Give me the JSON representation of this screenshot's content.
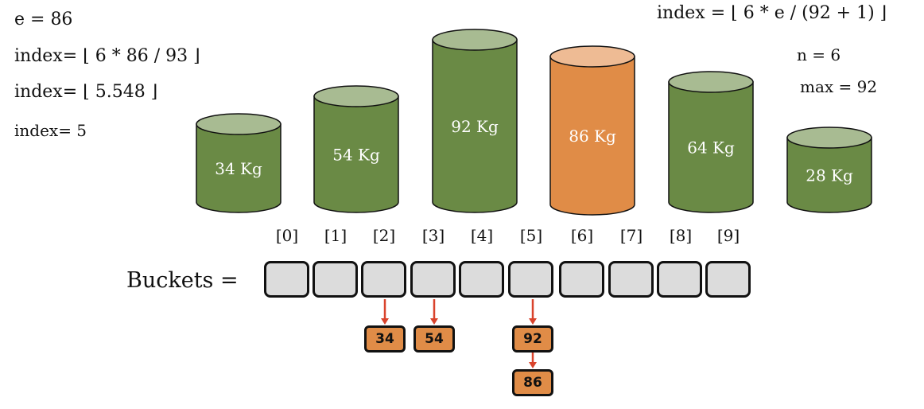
{
  "calc": {
    "e_line": "e =   86",
    "step1": "index= ⌊ 6 * 86 / 93 ⌋",
    "step2": "index= ⌊ 5.548 ⌋",
    "step3": "index= 5"
  },
  "formula": "index =  ⌊ 6 * e / (92 + 1) ⌋",
  "params": {
    "n": "n = 6",
    "max": "max = 92"
  },
  "colors": {
    "green": "#6a8a45",
    "green_top": "#a8bb92",
    "orange": "#e08c47",
    "orange_top": "#eebb94",
    "arrow": "#d9432c"
  },
  "cylinders": [
    {
      "label": "34 Kg",
      "color": "green"
    },
    {
      "label": "54 Kg",
      "color": "green"
    },
    {
      "label": "92 Kg",
      "color": "green"
    },
    {
      "label": "86 Kg",
      "color": "orange"
    },
    {
      "label": "64 Kg",
      "color": "green"
    },
    {
      "label": "28 Kg",
      "color": "green"
    }
  ],
  "buckets_label": "Buckets =",
  "indices": [
    "[0]",
    "[1]",
    "[2]",
    "[3]",
    "[4]",
    "[5]",
    "[6]",
    "[7]",
    "[8]",
    "[9]"
  ],
  "bucket_items": [
    {
      "bucket": 2,
      "values": [
        "34"
      ]
    },
    {
      "bucket": 3,
      "values": [
        "54"
      ]
    },
    {
      "bucket": 5,
      "values": [
        "92",
        "86"
      ]
    }
  ]
}
